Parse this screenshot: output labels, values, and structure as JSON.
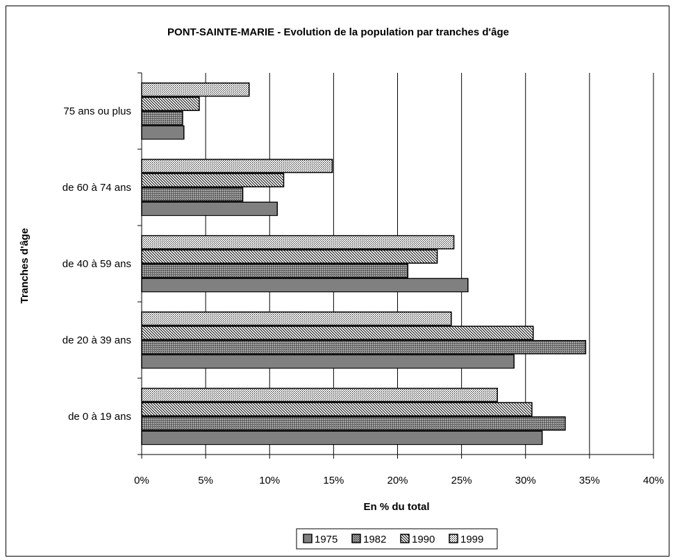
{
  "chart_data": {
    "type": "bar",
    "orientation": "horizontal",
    "title": "PONT-SAINTE-MARIE - Evolution de la population par tranches d'âge",
    "xlabel": "En % du total",
    "ylabel": "Tranches d'âge",
    "xlim": [
      0,
      40
    ],
    "x_ticks": [
      "0%",
      "5%",
      "10%",
      "15%",
      "20%",
      "25%",
      "30%",
      "35%",
      "40%"
    ],
    "x_tick_values": [
      0,
      5,
      10,
      15,
      20,
      25,
      30,
      35,
      40
    ],
    "categories": [
      "de 0 à 19 ans",
      "de 20 à 39 ans",
      "de 40 à 59 ans",
      "de 60 à 74 ans",
      "75 ans ou plus"
    ],
    "series": [
      {
        "name": "1975",
        "values": [
          31.3,
          29.1,
          25.5,
          10.6,
          3.3
        ]
      },
      {
        "name": "1982",
        "values": [
          33.1,
          34.7,
          20.8,
          7.9,
          3.2
        ]
      },
      {
        "name": "1990",
        "values": [
          30.5,
          30.6,
          23.1,
          11.1,
          4.5
        ]
      },
      {
        "name": "1999",
        "values": [
          27.8,
          24.2,
          24.4,
          14.9,
          8.4
        ]
      }
    ],
    "grid": "vertical",
    "legend_position": "bottom"
  }
}
